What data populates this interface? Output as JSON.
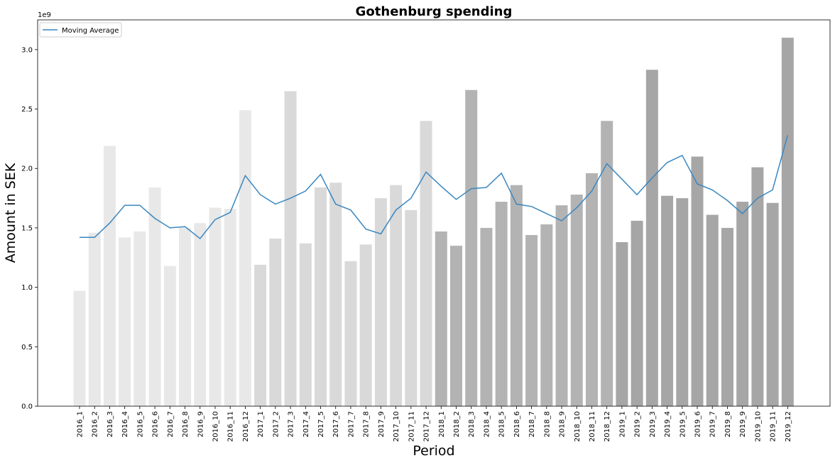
{
  "chart_data": {
    "type": "bar",
    "title": "Gothenburg spending",
    "xlabel": "Period",
    "ylabel": "Amount in SEK",
    "y_offset_label": "1e9",
    "ylim": [
      0,
      3.25
    ],
    "yticks": [
      0.0,
      0.5,
      1.0,
      1.5,
      2.0,
      2.5,
      3.0
    ],
    "ytick_labels": [
      "0.0",
      "0.5",
      "1.0",
      "1.5",
      "2.0",
      "2.5",
      "3.0"
    ],
    "grid": false,
    "legend_position": "top-left",
    "categories": [
      "2016_1",
      "2016_2",
      "2016_3",
      "2016_4",
      "2016_5",
      "2016_6",
      "2016_7",
      "2016_8",
      "2016_9",
      "2016_10",
      "2016_11",
      "2016_12",
      "2017_1",
      "2017_2",
      "2017_3",
      "2017_4",
      "2017_5",
      "2017_6",
      "2017_7",
      "2017_8",
      "2017_9",
      "2017_10",
      "2017_11",
      "2017_12",
      "2018_1",
      "2018_2",
      "2018_3",
      "2018_4",
      "2018_5",
      "2018_6",
      "2018_7",
      "2018_8",
      "2018_9",
      "2018_10",
      "2018_11",
      "2018_12",
      "2019_1",
      "2019_2",
      "2019_3",
      "2019_4",
      "2019_5",
      "2019_6",
      "2019_7",
      "2019_8",
      "2019_9",
      "2019_10",
      "2019_11",
      "2019_12"
    ],
    "values": [
      0.97,
      1.46,
      2.19,
      1.42,
      1.47,
      1.84,
      1.18,
      1.5,
      1.54,
      1.67,
      1.66,
      2.49,
      1.19,
      1.41,
      2.65,
      1.37,
      1.84,
      1.88,
      1.22,
      1.36,
      1.75,
      1.86,
      1.65,
      2.4,
      1.47,
      1.35,
      2.66,
      1.5,
      1.72,
      1.86,
      1.44,
      1.53,
      1.69,
      1.78,
      1.96,
      2.4,
      1.38,
      1.56,
      2.83,
      1.77,
      1.75,
      2.1,
      1.61,
      1.5,
      1.72,
      2.01,
      1.71,
      3.1
    ],
    "bar_colors_by_year": {
      "2016": "#e8e8e8",
      "2017": "#d9d9d9",
      "2018": "#b3b3b3",
      "2019": "#a6a6a6"
    },
    "series": [
      {
        "name": "Moving Average",
        "type": "line",
        "color": "#3a87c0",
        "values": [
          1.42,
          1.42,
          1.54,
          1.69,
          1.69,
          1.58,
          1.5,
          1.51,
          1.41,
          1.57,
          1.63,
          1.94,
          1.78,
          1.7,
          1.75,
          1.81,
          1.95,
          1.7,
          1.65,
          1.49,
          1.45,
          1.65,
          1.75,
          1.97,
          1.85,
          1.74,
          1.83,
          1.84,
          1.96,
          1.7,
          1.68,
          1.62,
          1.56,
          1.67,
          1.81,
          2.04,
          1.91,
          1.78,
          1.92,
          2.05,
          2.11,
          1.87,
          1.82,
          1.73,
          1.62,
          1.75,
          1.82,
          2.28
        ]
      }
    ]
  }
}
